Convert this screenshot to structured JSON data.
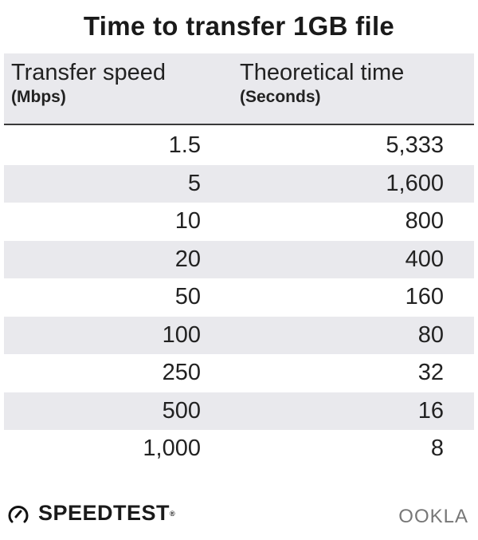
{
  "chart_data": {
    "type": "table",
    "title": "Time to transfer 1GB file",
    "columns": [
      {
        "label": "Transfer speed",
        "unit": "(Mbps)"
      },
      {
        "label": "Theoretical time",
        "unit": "(Seconds)"
      }
    ],
    "rows": [
      [
        "1.5",
        "5,333"
      ],
      [
        "5",
        "1,600"
      ],
      [
        "10",
        "800"
      ],
      [
        "20",
        "400"
      ],
      [
        "50",
        "160"
      ],
      [
        "100",
        "80"
      ],
      [
        "250",
        "32"
      ],
      [
        "500",
        "16"
      ],
      [
        "1,000",
        "8"
      ]
    ],
    "colors": {
      "header_bg": "#e9e9ed",
      "alt_row_bg": "#e9e9ed",
      "text": "#222222"
    }
  },
  "footer": {
    "brand": "SPEEDTEST",
    "registered": "®",
    "logo_right": "OOKLA",
    "brand_icon": "speedometer-icon"
  }
}
